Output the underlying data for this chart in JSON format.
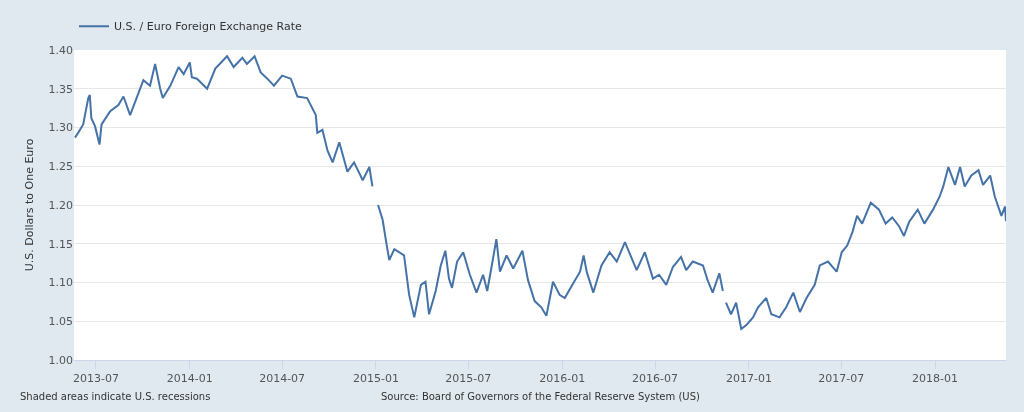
{
  "chart_data": {
    "type": "line",
    "ylabel": "U.S. Dollars to One Euro",
    "annotations": [
      "Shaded areas indicate U.S. recessions",
      "Source: Board of Governors of the Federal Reserve System (US)"
    ],
    "x": [
      "2013-05-21",
      "2013-05-27",
      "2013-06-06",
      "2013-06-16",
      "2013-06-19",
      "2013-06-22",
      "2013-06-29",
      "2013-07-08",
      "2013-07-12",
      "2013-07-29",
      "2013-08-14",
      "2013-08-24",
      "2013-09-06",
      "2013-10-02",
      "2013-10-15",
      "2013-10-25",
      "2013-11-04",
      "2013-11-09",
      "2013-11-24",
      "2013-12-10",
      "2013-12-20",
      "2014-01-01",
      "2014-01-05",
      "2014-01-15",
      "2014-02-04",
      "2014-02-20",
      "2014-03-15",
      "2014-03-28",
      "2014-04-14",
      "2014-04-23",
      "2014-05-08",
      "2014-05-20",
      "2014-06-02",
      "2014-06-15",
      "2014-07-01",
      "2014-07-18",
      "2014-07-31",
      "2014-08-19",
      "2014-09-05",
      "2014-09-08",
      "2014-09-18",
      "2014-09-28",
      "2014-10-08",
      "2014-10-21",
      "2014-11-06",
      "2014-11-19",
      "2014-12-06",
      "2014-12-19",
      "2014-12-25",
      "2015-01-01",
      "2015-01-05",
      "2015-01-14",
      "2015-01-21",
      "2015-01-27",
      "2015-02-06",
      "2015-02-25",
      "2015-03-07",
      "2015-03-17",
      "2015-03-30",
      "2015-04-08",
      "2015-04-15",
      "2015-04-28",
      "2015-05-08",
      "2015-05-17",
      "2015-05-24",
      "2015-05-30",
      "2015-06-09",
      "2015-06-21",
      "2015-07-04",
      "2015-07-17",
      "2015-07-30",
      "2015-08-07",
      "2015-08-15",
      "2015-08-25",
      "2015-09-01",
      "2015-09-14",
      "2015-09-27",
      "2015-10-15",
      "2015-10-26",
      "2015-11-08",
      "2015-11-21",
      "2015-12-01",
      "2015-12-14",
      "2015-12-27",
      "2016-01-06",
      "2016-01-19",
      "2016-02-05",
      "2016-02-12",
      "2016-02-18",
      "2016-03-02",
      "2016-03-18",
      "2016-04-03",
      "2016-04-17",
      "2016-05-03",
      "2016-05-26",
      "2016-06-11",
      "2016-06-27",
      "2016-07-09",
      "2016-07-23",
      "2016-08-05",
      "2016-08-21",
      "2016-08-31",
      "2016-09-13",
      "2016-10-03",
      "2016-10-12",
      "2016-10-22",
      "2016-11-04",
      "2016-11-11",
      "2016-11-14",
      "2016-11-17",
      "2016-11-27",
      "2016-12-07",
      "2016-12-17",
      "2016-12-27",
      "2017-01-09",
      "2017-01-19",
      "2017-02-04",
      "2017-02-14",
      "2017-03-02",
      "2017-03-15",
      "2017-03-29",
      "2017-04-11",
      "2017-04-24",
      "2017-05-10",
      "2017-05-20",
      "2017-06-05",
      "2017-06-22",
      "2017-07-02",
      "2017-07-13",
      "2017-07-23",
      "2017-08-01",
      "2017-08-11",
      "2017-08-28",
      "2017-09-13",
      "2017-09-26",
      "2017-10-09",
      "2017-10-22",
      "2017-11-01",
      "2017-11-11",
      "2017-11-28",
      "2017-12-11",
      "2017-12-28",
      "2018-01-10",
      "2018-01-17",
      "2018-01-27",
      "2018-02-09",
      "2018-02-19",
      "2018-02-28",
      "2018-03-13",
      "2018-03-27",
      "2018-04-05",
      "2018-04-19",
      "2018-04-28",
      "2018-05-11",
      "2018-05-18",
      "2018-05-20"
    ],
    "series": [
      {
        "name": "U.S. / Euro Foreign Exchange Rate",
        "color": "#4572a7",
        "values": [
          1.287,
          1.293,
          1.304,
          1.338,
          1.342,
          1.312,
          1.302,
          1.278,
          1.304,
          1.321,
          1.329,
          1.34,
          1.316,
          1.361,
          1.354,
          1.382,
          1.35,
          1.338,
          1.354,
          1.378,
          1.369,
          1.384,
          1.365,
          1.363,
          1.35,
          1.376,
          1.392,
          1.378,
          1.39,
          1.382,
          1.392,
          1.371,
          1.363,
          1.354,
          1.367,
          1.363,
          1.34,
          1.338,
          1.316,
          1.293,
          1.297,
          1.27,
          1.255,
          1.281,
          1.243,
          1.255,
          1.232,
          1.249,
          1.224,
          null,
          1.2,
          1.181,
          1.152,
          1.129,
          1.143,
          1.135,
          1.084,
          1.055,
          1.097,
          1.101,
          1.059,
          1.089,
          1.122,
          1.141,
          1.105,
          1.093,
          1.127,
          1.139,
          1.11,
          1.087,
          1.11,
          1.089,
          1.118,
          1.156,
          1.114,
          1.135,
          1.118,
          1.141,
          1.103,
          1.076,
          1.068,
          1.057,
          1.101,
          1.084,
          1.08,
          1.095,
          1.114,
          1.135,
          1.114,
          1.087,
          1.122,
          1.139,
          1.127,
          1.152,
          1.116,
          1.139,
          1.105,
          1.11,
          1.097,
          1.12,
          1.133,
          1.116,
          1.127,
          1.122,
          1.103,
          1.087,
          1.112,
          1.089,
          null,
          1.074,
          1.059,
          1.074,
          1.04,
          1.045,
          1.055,
          1.068,
          1.08,
          1.059,
          1.055,
          1.068,
          1.087,
          1.062,
          1.08,
          1.097,
          1.122,
          1.127,
          1.114,
          1.139,
          1.148,
          1.165,
          1.186,
          1.176,
          1.203,
          1.194,
          1.176,
          1.184,
          1.173,
          1.16,
          1.178,
          1.194,
          1.176,
          1.194,
          1.211,
          1.224,
          1.249,
          1.226,
          1.249,
          1.224,
          1.238,
          1.245,
          1.226,
          1.238,
          1.211,
          1.186,
          1.198,
          1.179
        ]
      }
    ],
    "xlim": [
      "2013-05-19",
      "2018-05-20"
    ],
    "xticks": [
      "2013-07",
      "2014-01",
      "2014-07",
      "2015-01",
      "2015-07",
      "2016-01",
      "2016-07",
      "2017-01",
      "2017-07",
      "2018-01"
    ],
    "ylim": [
      1.0,
      1.4
    ],
    "yticks": [
      {
        "value": 1.0,
        "label": "1.00"
      },
      {
        "value": 1.05,
        "label": "1.05"
      },
      {
        "value": 1.1,
        "label": "1.10"
      },
      {
        "value": 1.15,
        "label": "1.15"
      },
      {
        "value": 1.2,
        "label": "1.20"
      },
      {
        "value": 1.25,
        "label": "1.25"
      },
      {
        "value": 1.3,
        "label": "1.30"
      },
      {
        "value": 1.35,
        "label": "1.35"
      },
      {
        "value": 1.4,
        "label": "1.40"
      }
    ],
    "grid": "y",
    "legend": "top left",
    "marker": "none",
    "line_style": "solid"
  }
}
